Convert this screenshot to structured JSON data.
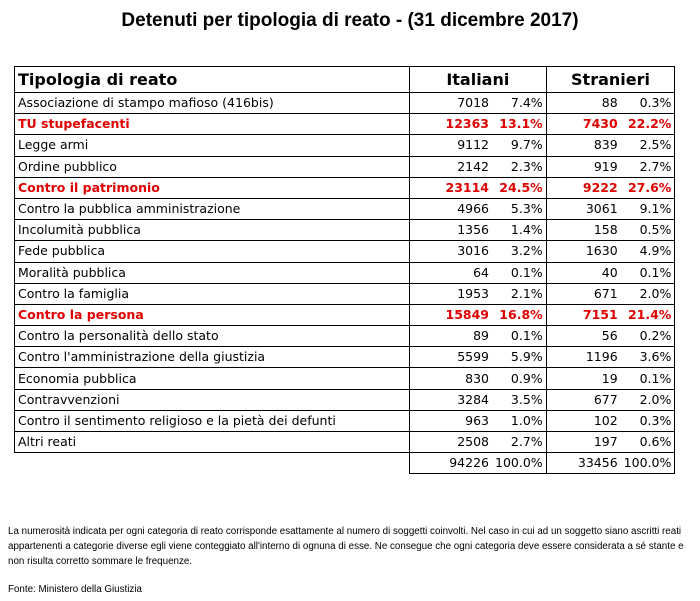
{
  "title": "Detenuti per tipologia di reato - (31 dicembre 2017)",
  "table": {
    "header": {
      "label": "Tipologia di reato",
      "group1": "Italiani",
      "group2": "Stranieri"
    },
    "rows": [
      {
        "name": "Associazione di stampo mafioso (416bis)",
        "it_n": "7018",
        "it_p": "7.4%",
        "st_n": "88",
        "st_p": "0.3%",
        "highlight": false
      },
      {
        "name": "TU stupefacenti",
        "it_n": "12363",
        "it_p": "13.1%",
        "st_n": "7430",
        "st_p": "22.2%",
        "highlight": true
      },
      {
        "name": "Legge armi",
        "it_n": "9112",
        "it_p": "9.7%",
        "st_n": "839",
        "st_p": "2.5%",
        "highlight": false
      },
      {
        "name": "Ordine pubblico",
        "it_n": "2142",
        "it_p": "2.3%",
        "st_n": "919",
        "st_p": "2.7%",
        "highlight": false
      },
      {
        "name": "Contro il patrimonio",
        "it_n": "23114",
        "it_p": "24.5%",
        "st_n": "9222",
        "st_p": "27.6%",
        "highlight": true
      },
      {
        "name": "Contro la pubblica amministrazione",
        "it_n": "4966",
        "it_p": "5.3%",
        "st_n": "3061",
        "st_p": "9.1%",
        "highlight": false
      },
      {
        "name": "Incolumità pubblica",
        "it_n": "1356",
        "it_p": "1.4%",
        "st_n": "158",
        "st_p": "0.5%",
        "highlight": false
      },
      {
        "name": "Fede pubblica",
        "it_n": "3016",
        "it_p": "3.2%",
        "st_n": "1630",
        "st_p": "4.9%",
        "highlight": false
      },
      {
        "name": "Moralità pubblica",
        "it_n": "64",
        "it_p": "0.1%",
        "st_n": "40",
        "st_p": "0.1%",
        "highlight": false
      },
      {
        "name": "Contro la famiglia",
        "it_n": "1953",
        "it_p": "2.1%",
        "st_n": "671",
        "st_p": "2.0%",
        "highlight": false
      },
      {
        "name": "Contro la persona",
        "it_n": "15849",
        "it_p": "16.8%",
        "st_n": "7151",
        "st_p": "21.4%",
        "highlight": true
      },
      {
        "name": "Contro la personalità dello stato",
        "it_n": "89",
        "it_p": "0.1%",
        "st_n": "56",
        "st_p": "0.2%",
        "highlight": false
      },
      {
        "name": "Contro l'amministrazione della giustizia",
        "it_n": "5599",
        "it_p": "5.9%",
        "st_n": "1196",
        "st_p": "3.6%",
        "highlight": false
      },
      {
        "name": "Economia pubblica",
        "it_n": "830",
        "it_p": "0.9%",
        "st_n": "19",
        "st_p": "0.1%",
        "highlight": false
      },
      {
        "name": "Contravvenzioni",
        "it_n": "3284",
        "it_p": "3.5%",
        "st_n": "677",
        "st_p": "2.0%",
        "highlight": false
      },
      {
        "name": "Contro il sentimento religioso e la pietà dei defunti",
        "it_n": "963",
        "it_p": "1.0%",
        "st_n": "102",
        "st_p": "0.3%",
        "highlight": false
      },
      {
        "name": "Altri reati",
        "it_n": "2508",
        "it_p": "2.7%",
        "st_n": "197",
        "st_p": "0.6%",
        "highlight": false
      }
    ],
    "total": {
      "it_n": "94226",
      "it_p": "100.0%",
      "st_n": "33456",
      "st_p": "100.0%"
    },
    "highlight_color": "#e00000"
  },
  "note": "La numerosità indicata per ogni categoria di reato corrisponde esattamente al numero di soggetti coinvolti. Nel caso in cui ad un soggetto siano ascritti reati appartenenti a categorie diverse egli viene conteggiato all'interno di ognuna di esse. Ne consegue che ogni categoria deve essere considerata a sé stante e non risulta corretto sommare le frequenze.",
  "source": "Fonte: Ministero della Giustizia"
}
